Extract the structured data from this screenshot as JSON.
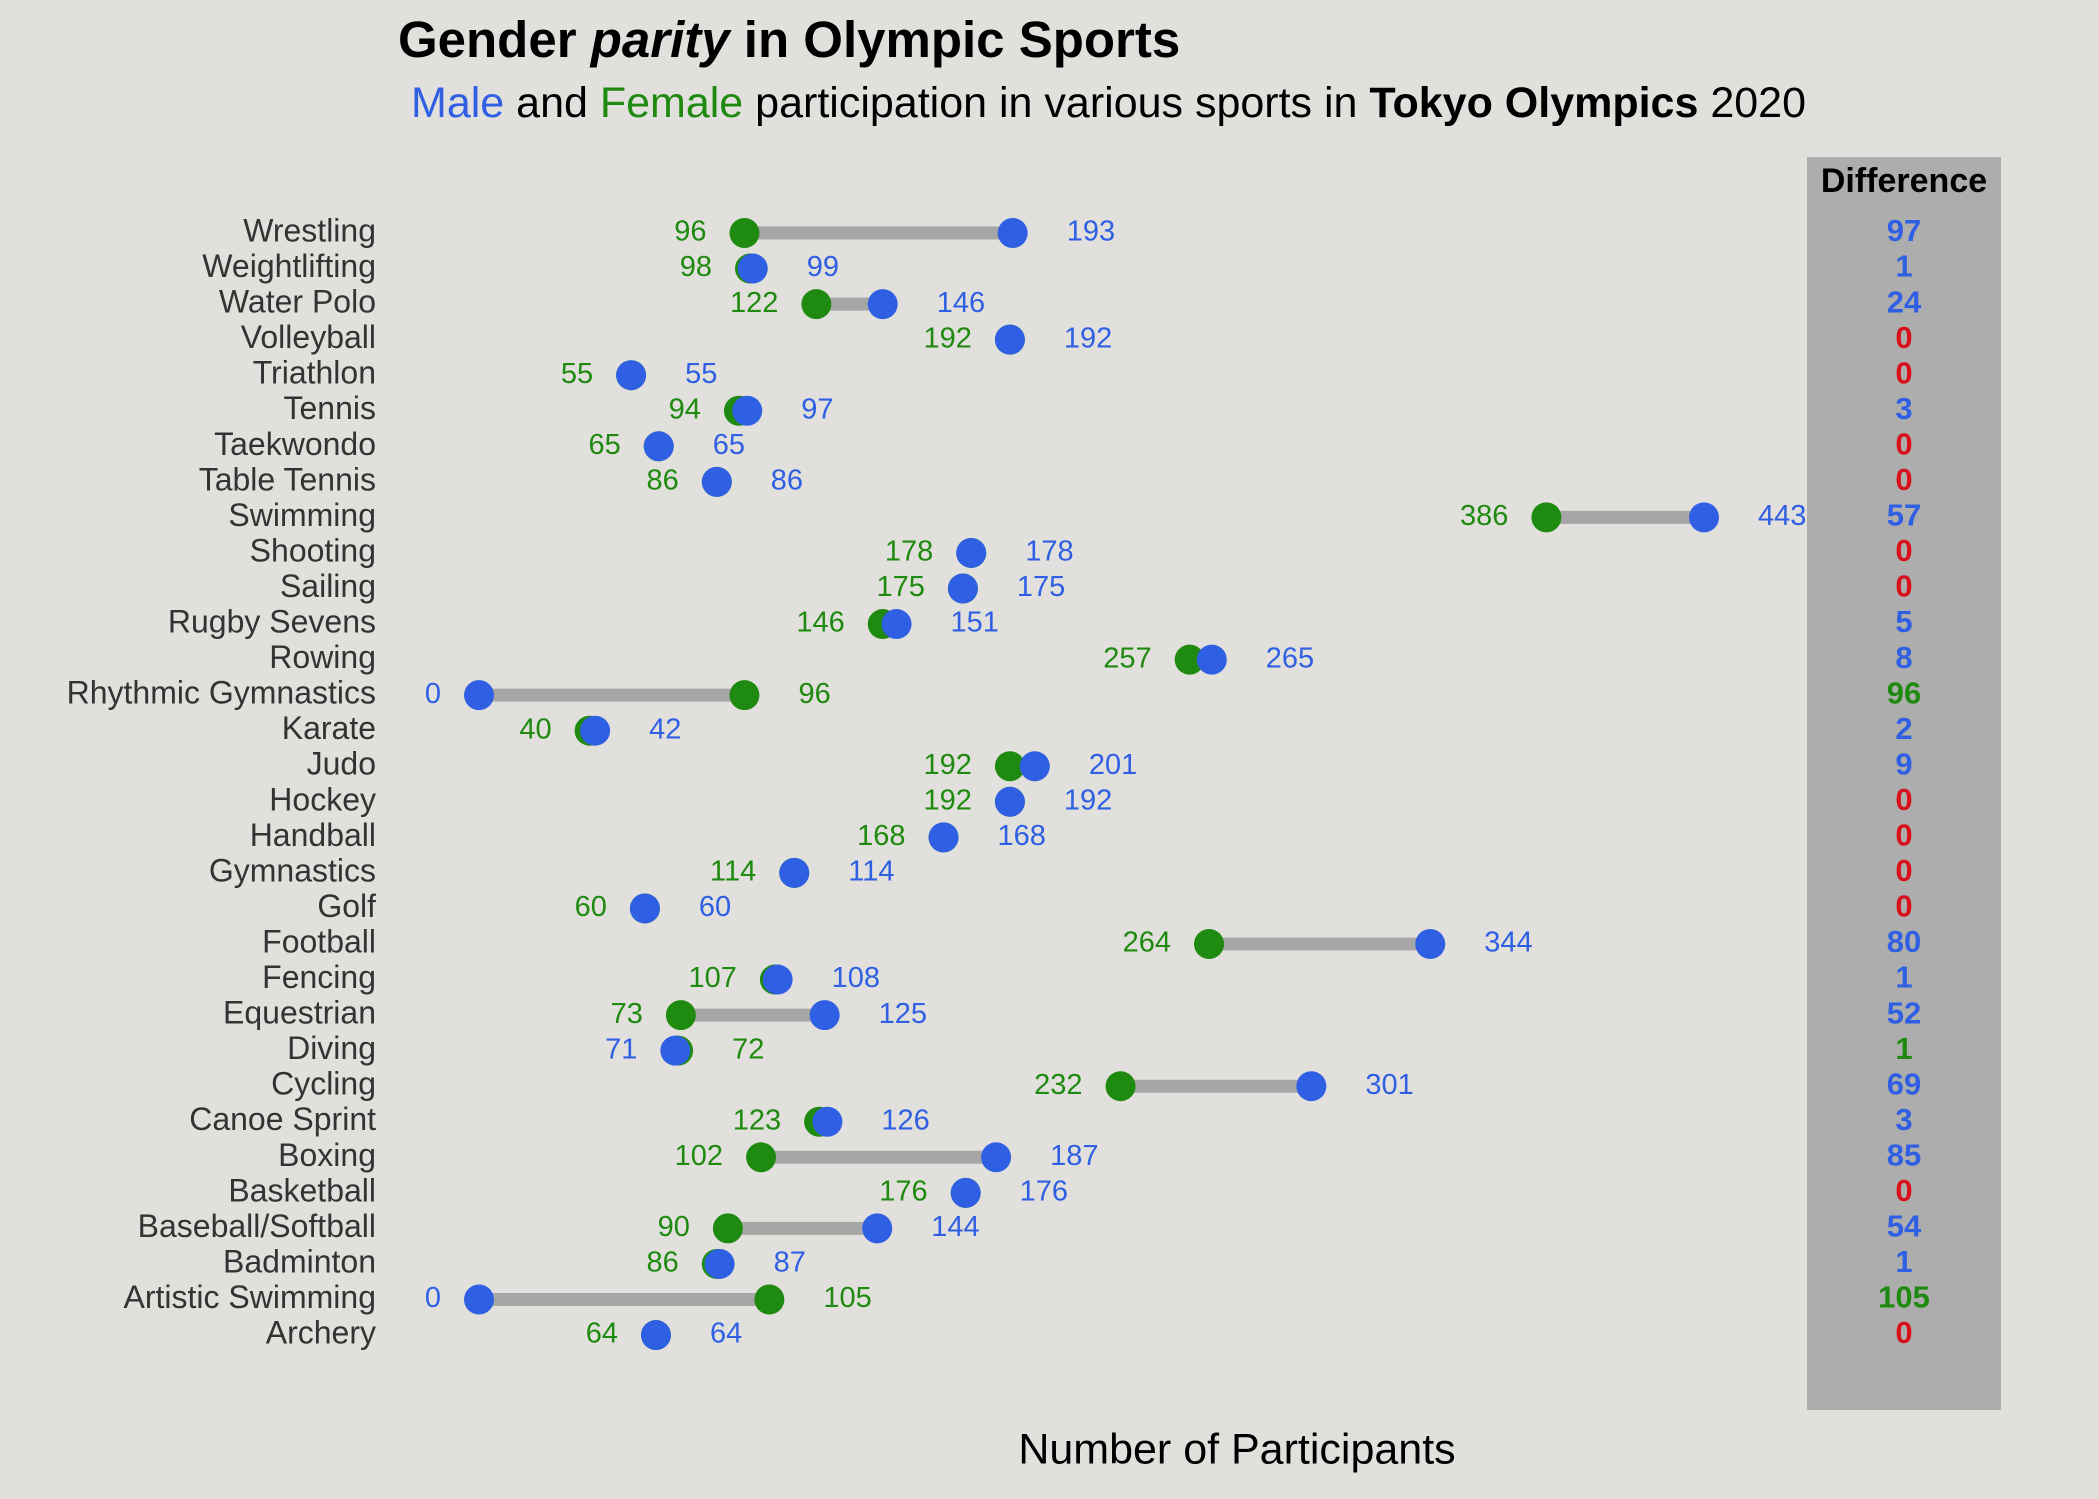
{
  "chart_data": {
    "type": "dumbbell",
    "title": [
      "Gender ",
      "parity",
      " in Olympic Sports"
    ],
    "subtitle": [
      "Male",
      " and ",
      "Female",
      " participation in various sports in ",
      "Tokyo Olympics",
      " 2020"
    ],
    "xlabel": "Number of Participants",
    "difference_title": "Difference",
    "categories": [
      "Wrestling",
      "Weightlifting",
      "Water Polo",
      "Volleyball",
      "Triathlon",
      "Tennis",
      "Taekwondo",
      "Table Tennis",
      "Swimming",
      "Shooting",
      "Sailing",
      "Rugby Sevens",
      "Rowing",
      "Rhythmic Gymnastics",
      "Karate",
      "Judo",
      "Hockey",
      "Handball",
      "Gymnastics",
      "Golf",
      "Football",
      "Fencing",
      "Equestrian",
      "Diving",
      "Cycling",
      "Canoe Sprint",
      "Boxing",
      "Basketball",
      "Baseball/Softball",
      "Badminton",
      "Artistic Swimming",
      "Archery"
    ],
    "series": [
      {
        "name": "Male",
        "color": "#2f5fe3",
        "values": [
          193,
          99,
          146,
          192,
          55,
          97,
          65,
          86,
          443,
          178,
          175,
          151,
          265,
          0,
          42,
          201,
          192,
          168,
          114,
          60,
          344,
          108,
          125,
          71,
          301,
          126,
          187,
          176,
          144,
          87,
          0,
          64
        ]
      },
      {
        "name": "Female",
        "color": "#1f8a10",
        "values": [
          96,
          98,
          122,
          192,
          55,
          94,
          65,
          86,
          386,
          178,
          175,
          146,
          257,
          96,
          40,
          192,
          192,
          168,
          114,
          60,
          264,
          107,
          73,
          72,
          232,
          123,
          102,
          176,
          90,
          86,
          105,
          64
        ]
      }
    ],
    "difference": [
      97,
      1,
      24,
      0,
      0,
      3,
      0,
      0,
      57,
      0,
      0,
      5,
      8,
      96,
      2,
      9,
      0,
      0,
      0,
      0,
      80,
      1,
      52,
      1,
      69,
      3,
      85,
      0,
      54,
      1,
      105,
      0
    ],
    "difference_zero_color": "#d8101c",
    "connector_color": "#a6a6a6",
    "xlim": [
      0,
      443
    ]
  }
}
